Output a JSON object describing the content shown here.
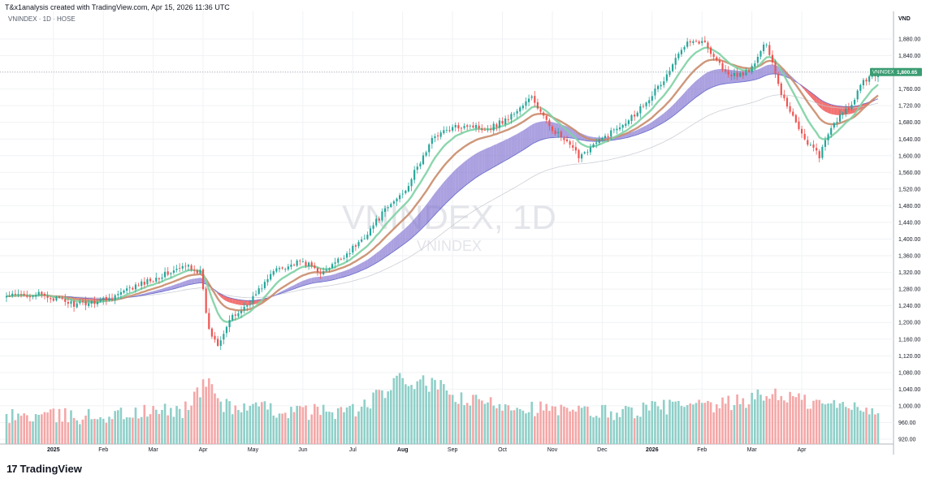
{
  "header": {
    "credit": "T&x1analysis created with TradingView.com, Apr 15, 2026 11:36 UTC",
    "symbol": "VNINDEX · 1D · HOSE"
  },
  "brand": {
    "name": "TradingView",
    "logo": "17"
  },
  "colors": {
    "up": "#26a69a",
    "down": "#ef5350",
    "vol_up": "#8fcfc8",
    "vol_down": "#f4a7a7",
    "ema_fast": "#7fd1a4",
    "ema_slow": "#c98c6b",
    "cloud_bull": "#7e6fd0",
    "cloud_bear": "#ee4444",
    "price_tag": "#3a9c72"
  },
  "chart_data": {
    "type": "candlestick",
    "symbol": "VNINDEX",
    "interval": "1D",
    "exchange": "HOSE",
    "currency": "VND",
    "watermark": "VNINDEX, 1D",
    "watermark_sub": "VNINDEX",
    "last_price": {
      "label": "VNINDEX",
      "value": "1,800.65",
      "number": 1800.65
    },
    "y_axis": {
      "unit": "VND",
      "range": [
        905,
        1915
      ],
      "ticks": [
        "1,880.00",
        "1,840.00",
        "1,800.00",
        "1,760.00",
        "1,720.00",
        "1,680.00",
        "1,640.00",
        "1,600.00",
        "1,560.00",
        "1,520.00",
        "1,480.00",
        "1,440.00",
        "1,400.00",
        "1,360.00",
        "1,320.00",
        "1,280.00",
        "1,240.00",
        "1,200.00",
        "1,160.00",
        "1,120.00",
        "1,080.00",
        "1,040.00",
        "1,000.00",
        "960.00",
        "920.00"
      ],
      "tick_values": [
        1880,
        1840,
        1800,
        1760,
        1720,
        1680,
        1640,
        1600,
        1560,
        1520,
        1480,
        1440,
        1400,
        1360,
        1320,
        1280,
        1240,
        1200,
        1160,
        1120,
        1080,
        1040,
        1000,
        960,
        920
      ]
    },
    "x_axis": {
      "labels": [
        "2025",
        "Feb",
        "Mar",
        "Apr",
        "May",
        "Jun",
        "Jul",
        "Aug",
        "Sep",
        "Oct",
        "Nov",
        "Dec",
        "2026",
        "Feb",
        "Mar",
        "Apr"
      ],
      "label_bar_index": [
        16,
        33,
        50,
        67,
        84,
        101,
        118,
        135,
        152,
        169,
        186,
        203,
        220,
        237,
        254,
        271
      ],
      "bold": [
        true,
        false,
        false,
        false,
        false,
        false,
        false,
        true,
        false,
        false,
        false,
        false,
        true,
        false,
        false,
        false
      ]
    },
    "anchors": [
      [
        0,
        1262
      ],
      [
        10,
        1268
      ],
      [
        18,
        1254
      ],
      [
        24,
        1242
      ],
      [
        35,
        1258
      ],
      [
        50,
        1305
      ],
      [
        62,
        1336
      ],
      [
        66,
        1320
      ],
      [
        69,
        1180
      ],
      [
        72,
        1150
      ],
      [
        76,
        1205
      ],
      [
        82,
        1242
      ],
      [
        92,
        1330
      ],
      [
        101,
        1345
      ],
      [
        108,
        1318
      ],
      [
        120,
        1390
      ],
      [
        128,
        1460
      ],
      [
        136,
        1520
      ],
      [
        146,
        1650
      ],
      [
        156,
        1675
      ],
      [
        164,
        1665
      ],
      [
        171,
        1690
      ],
      [
        179,
        1740
      ],
      [
        184,
        1680
      ],
      [
        195,
        1600
      ],
      [
        203,
        1640
      ],
      [
        214,
        1700
      ],
      [
        224,
        1780
      ],
      [
        232,
        1880
      ],
      [
        238,
        1870
      ],
      [
        246,
        1790
      ],
      [
        253,
        1800
      ],
      [
        259,
        1872
      ],
      [
        264,
        1750
      ],
      [
        272,
        1640
      ],
      [
        277,
        1600
      ],
      [
        282,
        1680
      ],
      [
        288,
        1720
      ],
      [
        292,
        1780
      ],
      [
        297,
        1801
      ]
    ],
    "volume_anchors": [
      [
        0,
        975
      ],
      [
        30,
        975
      ],
      [
        60,
        990
      ],
      [
        69,
        1060
      ],
      [
        74,
        1000
      ],
      [
        100,
        985
      ],
      [
        120,
        990
      ],
      [
        134,
        1060
      ],
      [
        146,
        1050
      ],
      [
        156,
        1010
      ],
      [
        170,
        1005
      ],
      [
        190,
        985
      ],
      [
        210,
        985
      ],
      [
        226,
        1000
      ],
      [
        240,
        995
      ],
      [
        262,
        1030
      ],
      [
        275,
        1005
      ],
      [
        297,
        995
      ]
    ],
    "ema_fast_period": 10,
    "ema_slow_period": 20,
    "cloud_periods": [
      30,
      50
    ]
  }
}
